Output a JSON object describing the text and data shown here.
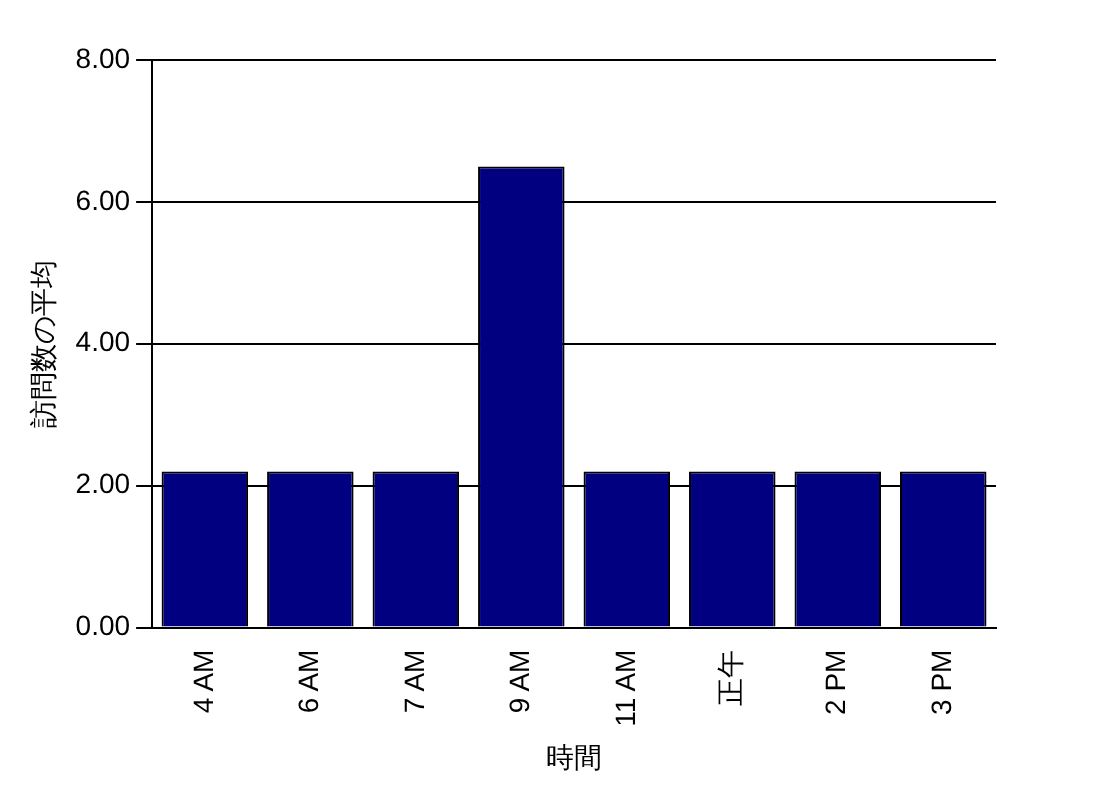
{
  "chart_data": {
    "type": "bar",
    "xlabel": "時間",
    "ylabel": "訪問数の平均",
    "categories": [
      "4 AM",
      "6 AM",
      "7 AM",
      "9 AM",
      "11 AM",
      "正午",
      "2 PM",
      "3 PM"
    ],
    "values": [
      2.2,
      2.2,
      2.2,
      6.5,
      2.2,
      2.2,
      2.2,
      2.2
    ],
    "color": "#000080",
    "ylim": [
      0,
      8
    ],
    "yticks": [
      {
        "value": 0,
        "label": "0.00"
      },
      {
        "value": 2,
        "label": "2.00"
      },
      {
        "value": 4,
        "label": "4.00"
      },
      {
        "value": 6,
        "label": "6.00"
      },
      {
        "value": 8,
        "label": "8.00"
      }
    ],
    "grid": "y"
  }
}
